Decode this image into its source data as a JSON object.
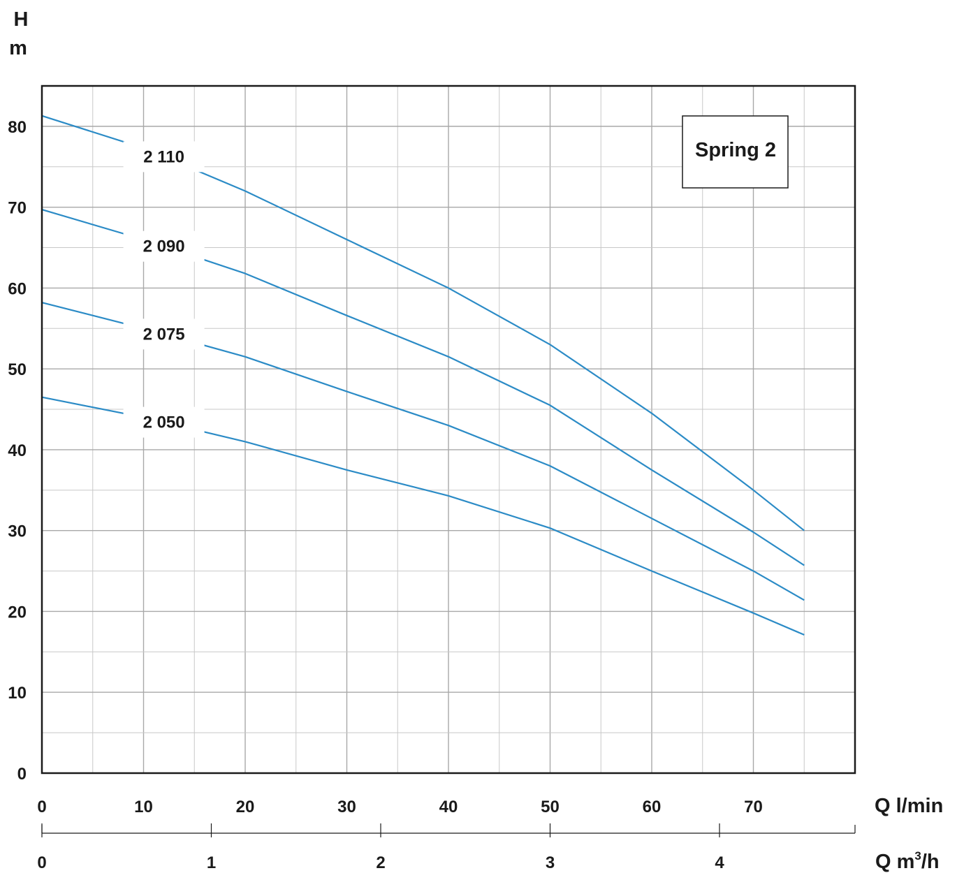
{
  "chart_data": {
    "type": "line",
    "title": "Spring 2",
    "y_axis": {
      "label_line1": "H",
      "label_line2": "m",
      "ylim": [
        0,
        85
      ],
      "ticks": [
        0,
        10,
        20,
        30,
        40,
        50,
        60,
        70,
        80
      ],
      "minor_step": 5
    },
    "x_axis": {
      "label": "Q l/min",
      "xlim": [
        0,
        80
      ],
      "ticks": [
        0,
        10,
        20,
        30,
        40,
        50,
        60,
        70
      ],
      "minor_step": 5
    },
    "x2_axis": {
      "label_prefix": "Q m",
      "label_sup": "3",
      "label_suffix": "/h",
      "ticks": [
        0,
        1,
        2,
        3,
        4
      ]
    },
    "grid": true,
    "series": [
      {
        "name": "2 110",
        "x": [
          0,
          10,
          20,
          30,
          40,
          50,
          60,
          70,
          75
        ],
        "y": [
          81.3,
          77.3,
          72.0,
          66.0,
          60.0,
          53.0,
          44.5,
          35.0,
          30.0
        ]
      },
      {
        "name": "2 090",
        "x": [
          0,
          10,
          20,
          30,
          40,
          50,
          60,
          70,
          75
        ],
        "y": [
          69.7,
          66.0,
          61.8,
          56.6,
          51.5,
          45.5,
          37.5,
          29.8,
          25.7
        ]
      },
      {
        "name": "2 075",
        "x": [
          0,
          10,
          20,
          30,
          40,
          50,
          60,
          70,
          75
        ],
        "y": [
          58.2,
          55.0,
          51.5,
          47.2,
          43.0,
          38.0,
          31.5,
          25.0,
          21.4
        ]
      },
      {
        "name": "2 050",
        "x": [
          0,
          10,
          20,
          30,
          40,
          50,
          60,
          70,
          75
        ],
        "y": [
          46.5,
          44.0,
          41.0,
          37.5,
          34.3,
          30.3,
          25.0,
          19.8,
          17.1
        ]
      }
    ],
    "colors": {
      "series": "#2b8bc6",
      "grid": "#c8c8c8",
      "axis": "#1a1a1a"
    }
  }
}
